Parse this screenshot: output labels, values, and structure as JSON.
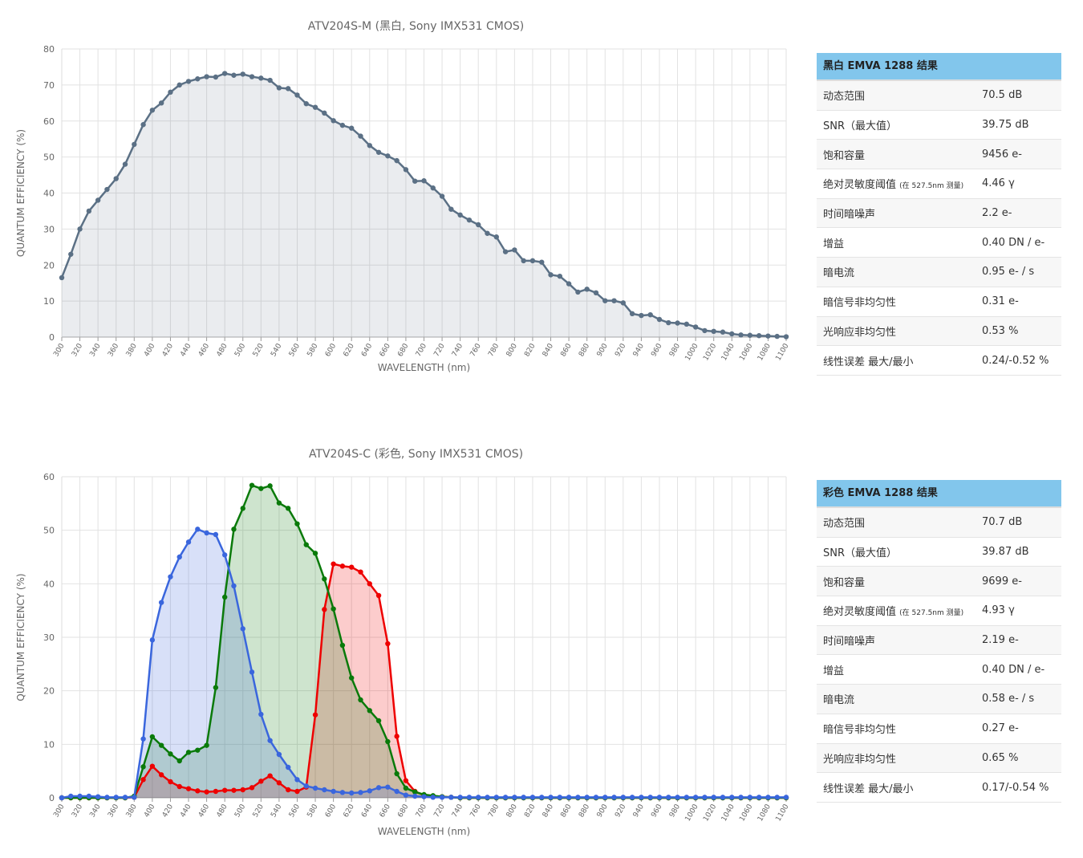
{
  "chart_data": [
    {
      "type": "line",
      "title": "ATV204S-M (黑白, Sony IMX531 CMOS)",
      "x_label": "WAVELENGTH (nm)",
      "y_label": "QUANTUM EFFICIENCY (%)",
      "x": [
        300,
        310,
        320,
        330,
        340,
        350,
        360,
        370,
        380,
        390,
        400,
        410,
        420,
        430,
        440,
        450,
        460,
        470,
        480,
        490,
        500,
        510,
        520,
        530,
        540,
        550,
        560,
        570,
        580,
        590,
        600,
        610,
        620,
        630,
        640,
        650,
        660,
        670,
        680,
        690,
        700,
        710,
        720,
        730,
        740,
        750,
        760,
        770,
        780,
        790,
        800,
        810,
        820,
        830,
        840,
        850,
        860,
        870,
        880,
        890,
        900,
        910,
        920,
        930,
        940,
        950,
        960,
        970,
        980,
        990,
        1000,
        1010,
        1020,
        1030,
        1040,
        1050,
        1060,
        1070,
        1080,
        1090,
        1100
      ],
      "series": [
        {
          "color": "#5b7085",
          "fill": true,
          "values": [
            16.5,
            23,
            30,
            35,
            38,
            41,
            44,
            48,
            53.5,
            59,
            63,
            65,
            68,
            70,
            71,
            71.7,
            72.3,
            72.2,
            73.2,
            72.7,
            73,
            72.3,
            71.9,
            71.3,
            69.2,
            69,
            67.2,
            64.8,
            63.8,
            62.2,
            60.1,
            58.8,
            58,
            55.8,
            53.2,
            51.3,
            50.3,
            49,
            46.5,
            43.3,
            43.4,
            41.4,
            39.1,
            35.5,
            33.9,
            32.5,
            31.2,
            28.8,
            27.8,
            23.7,
            24.2,
            21.2,
            21.2,
            20.8,
            17.3,
            16.9,
            14.8,
            12.5,
            13.3,
            12.3,
            10.1,
            10.1,
            9.5,
            6.5,
            6,
            6.2,
            4.9,
            4,
            3.9,
            3.6,
            2.8,
            1.8,
            1.6,
            1.4,
            0.9,
            0.6,
            0.5,
            0.4,
            0.3,
            0.2,
            0.1
          ]
        }
      ],
      "xlim": [
        300,
        1100
      ],
      "xticks": [
        300,
        320,
        340,
        360,
        380,
        400,
        420,
        440,
        460,
        480,
        500,
        520,
        540,
        560,
        580,
        600,
        620,
        640,
        660,
        680,
        700,
        720,
        740,
        760,
        780,
        800,
        820,
        840,
        860,
        880,
        900,
        920,
        940,
        960,
        980,
        1000,
        1020,
        1040,
        1060,
        1080,
        1100
      ],
      "ylim": [
        0,
        80
      ],
      "yticks": [
        0,
        10,
        20,
        30,
        40,
        50,
        60,
        70,
        80
      ],
      "grid": true
    },
    {
      "type": "line",
      "title": "ATV204S-C (彩色, Sony IMX531 CMOS)",
      "x_label": "WAVELENGTH (nm)",
      "y_label": "QUANTUM EFFICIENCY (%)",
      "x": [
        300,
        310,
        320,
        330,
        340,
        350,
        360,
        370,
        380,
        390,
        400,
        410,
        420,
        430,
        440,
        450,
        460,
        470,
        480,
        490,
        500,
        510,
        520,
        530,
        540,
        550,
        560,
        570,
        580,
        590,
        600,
        610,
        620,
        630,
        640,
        650,
        660,
        670,
        680,
        690,
        700,
        710,
        720,
        730,
        740,
        750,
        760,
        770,
        780,
        790,
        800,
        810,
        820,
        830,
        840,
        850,
        860,
        870,
        880,
        890,
        900,
        910,
        920,
        930,
        940,
        950,
        960,
        970,
        980,
        990,
        1000,
        1010,
        1020,
        1030,
        1040,
        1050,
        1060,
        1070,
        1080,
        1090,
        1100
      ],
      "series": [
        {
          "color": "#ee0000",
          "fill": true,
          "values": [
            0,
            0,
            0,
            0,
            0,
            0,
            0,
            0,
            0.1,
            3.4,
            5.9,
            4.3,
            3,
            2.1,
            1.7,
            1.3,
            1.1,
            1.2,
            1.4,
            1.4,
            1.5,
            1.9,
            3.1,
            4.1,
            2.8,
            1.5,
            1.2,
            2,
            15.5,
            35.2,
            43.7,
            43.3,
            43.1,
            42.2,
            40,
            37.8,
            28.8,
            11.5,
            3.2,
            1.2,
            0.5,
            0.3,
            0.2,
            0.1,
            0,
            0,
            0,
            0,
            0,
            0,
            0,
            0,
            0,
            0,
            0,
            0,
            0,
            0,
            0,
            0,
            0,
            0,
            0,
            0,
            0,
            0,
            0,
            0,
            0,
            0,
            0,
            0,
            0,
            0,
            0,
            0,
            0,
            0,
            0,
            0,
            0
          ]
        },
        {
          "color": "#0a7a0a",
          "fill": true,
          "values": [
            0,
            0,
            0,
            0,
            0,
            0,
            0,
            0,
            0.3,
            5.8,
            11.4,
            9.8,
            8.2,
            6.9,
            8.5,
            8.9,
            9.8,
            20.6,
            37.5,
            50.2,
            54.1,
            58.4,
            57.8,
            58.3,
            55.1,
            54.1,
            51.2,
            47.3,
            45.7,
            40.9,
            35.3,
            28.5,
            22.4,
            18.3,
            16.3,
            14.4,
            10.5,
            4.5,
            1.8,
            1.1,
            0.6,
            0.4,
            0.2,
            0.1,
            0,
            0,
            0,
            0,
            0,
            0,
            0,
            0,
            0,
            0,
            0,
            0,
            0,
            0,
            0,
            0,
            0,
            0,
            0,
            0,
            0,
            0,
            0,
            0,
            0,
            0,
            0,
            0,
            0,
            0,
            0,
            0,
            0,
            0,
            0,
            0,
            0
          ]
        },
        {
          "color": "#3a66dd",
          "fill": true,
          "values": [
            0,
            0.3,
            0.3,
            0.3,
            0.2,
            0.1,
            0.1,
            0.1,
            0.1,
            11,
            29.5,
            36.5,
            41.3,
            45,
            47.8,
            50.2,
            49.5,
            49.2,
            45.4,
            39.6,
            31.6,
            23.5,
            15.6,
            10.7,
            8.1,
            5.7,
            3.4,
            2.2,
            1.8,
            1.5,
            1.2,
            1,
            0.9,
            1,
            1.3,
            1.9,
            2,
            1.2,
            0.5,
            0.3,
            0.2,
            0.1,
            0.1,
            0.1,
            0.1,
            0.1,
            0.1,
            0.1,
            0.1,
            0.1,
            0.1,
            0.1,
            0.1,
            0.1,
            0.1,
            0.1,
            0.1,
            0.1,
            0.1,
            0.1,
            0.1,
            0.1,
            0.1,
            0.1,
            0.1,
            0.1,
            0.1,
            0.1,
            0.1,
            0.1,
            0.1,
            0.1,
            0.1,
            0.1,
            0.1,
            0.1,
            0.1,
            0.1,
            0.1,
            0.1,
            0.1
          ]
        }
      ],
      "xlim": [
        300,
        1100
      ],
      "xticks": [
        300,
        320,
        340,
        360,
        380,
        400,
        420,
        440,
        460,
        480,
        500,
        520,
        540,
        560,
        580,
        600,
        620,
        640,
        660,
        680,
        700,
        720,
        740,
        760,
        780,
        800,
        820,
        840,
        860,
        880,
        900,
        920,
        940,
        960,
        980,
        1000,
        1020,
        1040,
        1060,
        1080,
        1100
      ],
      "ylim": [
        0,
        60
      ],
      "yticks": [
        0,
        10,
        20,
        30,
        40,
        50,
        60
      ],
      "grid": true
    }
  ],
  "tables": [
    {
      "title": "黑白 EMVA 1288 结果",
      "rows": [
        {
          "label": "动态范围",
          "value": "70.5 dB"
        },
        {
          "label": "SNR（最大值）",
          "value": "39.75 dB"
        },
        {
          "label": "饱和容量",
          "value": "9456 e-"
        },
        {
          "label": "绝对灵敏度阈值",
          "note": "(在 527.5nm 测量)",
          "value": "4.46 γ"
        },
        {
          "label": "时间暗噪声",
          "value": "2.2 e-"
        },
        {
          "label": "增益",
          "value": "0.40 DN / e-"
        },
        {
          "label": "暗电流",
          "value": "0.95 e- / s"
        },
        {
          "label": "暗信号非均匀性",
          "value": "0.31 e-"
        },
        {
          "label": "光响应非均匀性",
          "value": "0.53 %"
        },
        {
          "label": "线性误差 最大/最小",
          "value": "0.24/-0.52 %"
        }
      ]
    },
    {
      "title": "彩色 EMVA 1288 结果",
      "rows": [
        {
          "label": "动态范围",
          "value": "70.7 dB"
        },
        {
          "label": "SNR（最大值）",
          "value": "39.87 dB"
        },
        {
          "label": "饱和容量",
          "value": "9699 e-"
        },
        {
          "label": "绝对灵敏度阈值",
          "note": "(在 527.5nm 测量)",
          "value": "4.93 γ"
        },
        {
          "label": "时间暗噪声",
          "value": "2.19 e-"
        },
        {
          "label": "增益",
          "value": "0.40 DN / e-"
        },
        {
          "label": "暗电流",
          "value": "0.58 e- / s"
        },
        {
          "label": "暗信号非均匀性",
          "value": "0.27 e-"
        },
        {
          "label": "光响应非均匀性",
          "value": "0.65 %"
        },
        {
          "label": "线性误差 最大/最小",
          "value": "0.17/-0.54 %"
        }
      ]
    }
  ]
}
